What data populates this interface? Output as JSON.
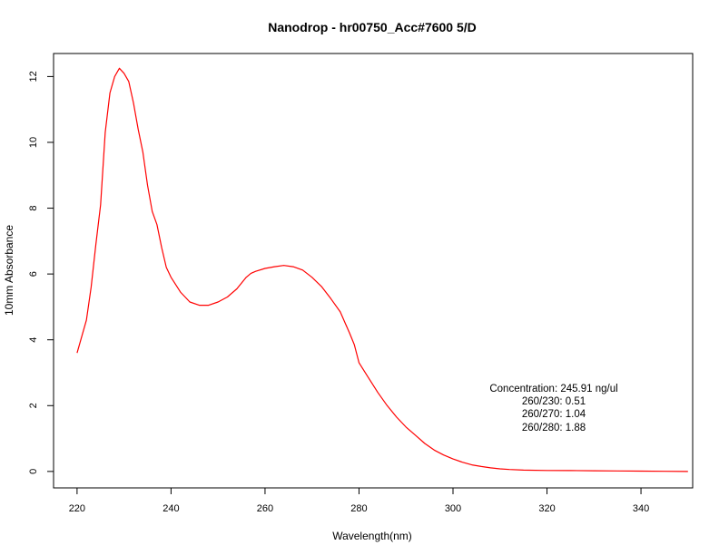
{
  "chart_data": {
    "type": "line",
    "title": "Nanodrop - hr00750_Acc#7600 5/D",
    "xlabel": "Wavelength(nm)",
    "ylabel": "10mm Absorbance",
    "xlim": [
      215,
      351
    ],
    "ylim": [
      -0.5,
      12.7
    ],
    "x_ticks": [
      220,
      240,
      260,
      280,
      300,
      320,
      340
    ],
    "y_ticks": [
      0,
      2,
      4,
      6,
      8,
      10,
      12
    ],
    "grid": false,
    "series": [
      {
        "color": "#ff0000",
        "x": [
          220,
          222,
          223,
          224,
          225,
          226,
          227,
          228,
          229,
          230,
          231,
          232,
          233,
          234,
          235,
          236,
          237,
          238,
          239,
          240,
          242,
          244,
          246,
          248,
          250,
          252,
          254,
          256,
          257,
          258,
          260,
          262,
          264,
          266,
          268,
          270,
          272,
          274,
          276,
          278,
          279,
          280,
          282,
          284,
          286,
          288,
          290,
          292,
          294,
          296,
          298,
          300,
          302,
          304,
          306,
          308,
          310,
          312,
          315,
          320,
          325,
          330,
          335,
          340,
          345,
          350
        ],
        "values": [
          3.6,
          4.6,
          5.6,
          6.9,
          8.1,
          10.3,
          11.5,
          12.0,
          12.25,
          12.1,
          11.85,
          11.2,
          10.4,
          9.7,
          8.7,
          7.9,
          7.5,
          6.8,
          6.2,
          5.9,
          5.45,
          5.15,
          5.05,
          5.05,
          5.15,
          5.3,
          5.55,
          5.9,
          6.02,
          6.08,
          6.17,
          6.22,
          6.26,
          6.22,
          6.12,
          5.9,
          5.62,
          5.25,
          4.85,
          4.2,
          3.85,
          3.3,
          2.85,
          2.4,
          2.0,
          1.65,
          1.35,
          1.1,
          0.85,
          0.65,
          0.5,
          0.38,
          0.28,
          0.2,
          0.15,
          0.11,
          0.08,
          0.06,
          0.04,
          0.03,
          0.025,
          0.02,
          0.015,
          0.01,
          0.005,
          0.0
        ]
      }
    ],
    "annotations": [
      "Concentration: 245.91 ng/ul",
      "260/230: 0.51",
      "260/270: 1.04",
      "260/280: 1.88"
    ]
  }
}
